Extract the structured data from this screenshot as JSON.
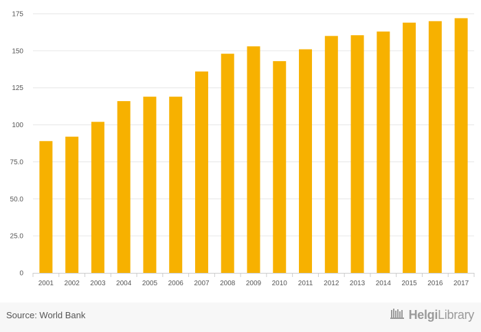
{
  "chart_data": {
    "type": "bar",
    "categories": [
      "2001",
      "2002",
      "2003",
      "2004",
      "2005",
      "2006",
      "2007",
      "2008",
      "2009",
      "2010",
      "2011",
      "2012",
      "2013",
      "2014",
      "2015",
      "2016",
      "2017"
    ],
    "values": [
      89,
      92,
      102,
      116,
      119,
      119,
      136,
      148,
      153,
      143,
      151,
      160,
      160.5,
      163,
      169,
      170,
      172
    ],
    "ylim": [
      0,
      175
    ],
    "yticks": [
      "0",
      "25.0",
      "50.0",
      "75.0",
      "100",
      "125",
      "150",
      "175"
    ],
    "ytick_values": [
      0,
      25,
      50,
      75,
      100,
      125,
      150,
      175
    ],
    "grid": true,
    "bar_color": "#f7b100",
    "title": "",
    "xlabel": "",
    "ylabel": ""
  },
  "footer": {
    "source": "Source: World Bank",
    "brand_part1": "Helgi",
    "brand_part2": "Library",
    "brand_icon": "library-logo-icon"
  }
}
